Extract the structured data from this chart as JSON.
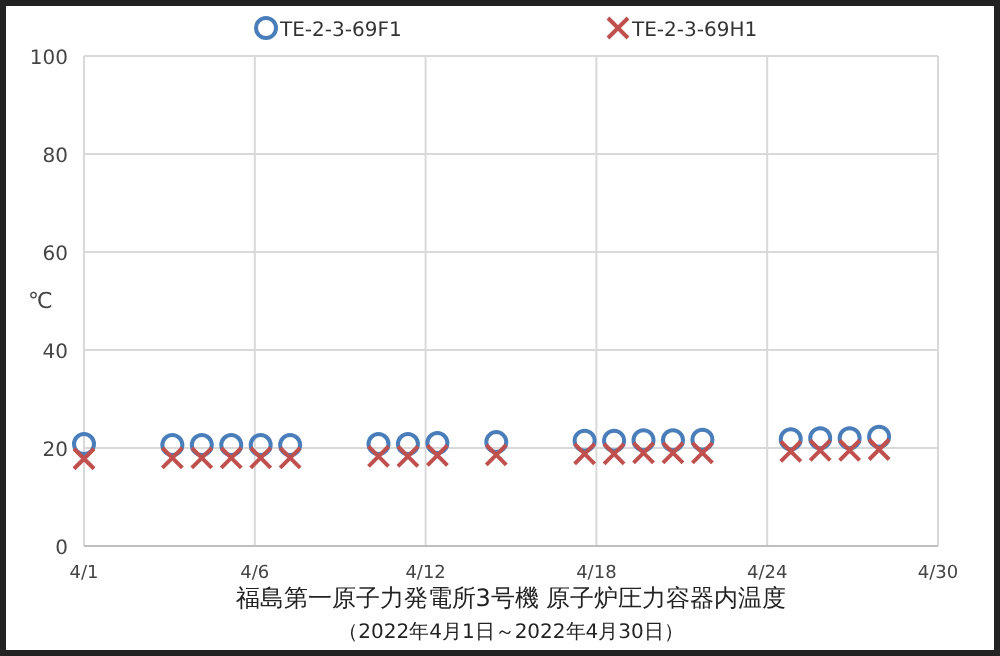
{
  "chart_data": {
    "type": "scatter",
    "title": "福島第一原子力発電所3号機 原子炉圧力容器内温度",
    "subtitle": "（2022年4月1日～2022年4月30日）",
    "ylabel": "℃",
    "x": [
      "2022-04-01",
      "2022-04-04",
      "2022-04-05",
      "2022-04-06",
      "2022-04-07",
      "2022-04-08",
      "2022-04-11",
      "2022-04-12",
      "2022-04-13",
      "2022-04-15",
      "2022-04-18",
      "2022-04-19",
      "2022-04-20",
      "2022-04-21",
      "2022-04-22",
      "2022-04-25",
      "2022-04-26",
      "2022-04-27",
      "2022-04-28"
    ],
    "series": [
      {
        "name": "TE-2-3-69F1",
        "color": "#4a7ebb",
        "marker": "circle",
        "values": [
          20.8,
          20.6,
          20.6,
          20.6,
          20.6,
          20.6,
          20.8,
          20.8,
          21.0,
          21.2,
          21.5,
          21.5,
          21.6,
          21.6,
          21.7,
          21.8,
          22.0,
          22.0,
          22.3
        ]
      },
      {
        "name": "TE-2-3-69H1",
        "color": "#c0504d",
        "marker": "cross",
        "values": [
          17.8,
          18.0,
          18.0,
          18.0,
          18.0,
          18.0,
          18.3,
          18.3,
          18.5,
          18.6,
          18.8,
          18.8,
          19.0,
          19.0,
          19.0,
          19.3,
          19.5,
          19.5,
          19.7
        ]
      }
    ],
    "xlim": [
      "2022-04-01",
      "2022-04-30"
    ],
    "xticks": [
      {
        "value": "2022-04-01",
        "label": "4/1"
      },
      {
        "value": "2022-04-06T19:12",
        "label": "4/6"
      },
      {
        "value": "2022-04-12T14:24",
        "label": "4/12"
      },
      {
        "value": "2022-04-18T09:36",
        "label": "4/18"
      },
      {
        "value": "2022-04-24T04:48",
        "label": "4/24"
      },
      {
        "value": "2022-04-30",
        "label": "4/30"
      }
    ],
    "ylim": [
      0,
      100
    ],
    "yticks": [
      0,
      20,
      40,
      60,
      80,
      100
    ],
    "grid": true,
    "legend": "top"
  }
}
